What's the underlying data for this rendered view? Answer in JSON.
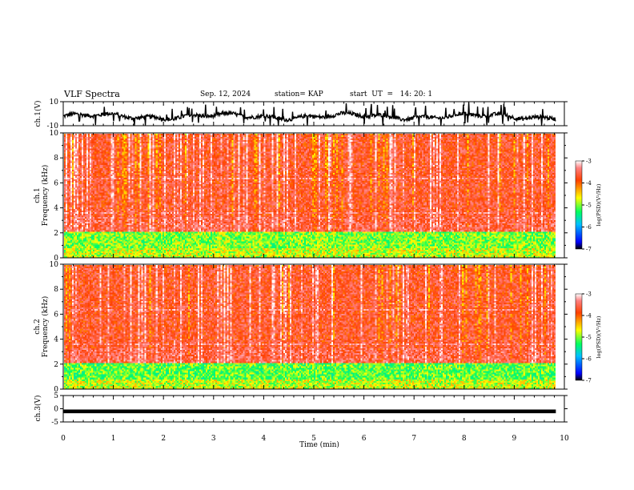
{
  "header": {
    "title": "VLF Spectra",
    "date": "Sep. 12, 2024",
    "station": "station= KAP",
    "start": "start  UT  =   14: 20: 1"
  },
  "chart_data": [
    {
      "type": "line",
      "ylabel": "ch.1(V)",
      "ylim": [
        -10,
        10
      ],
      "yticks": [
        "10",
        "-10"
      ],
      "note": "raw waveform trace, approximately -2 V baseline with spikes"
    },
    {
      "type": "heatmap",
      "ylabel_top": "ch.1",
      "ylabel": "Frequency (kHz)",
      "ylim": [
        0,
        10
      ],
      "yticks": [
        "10",
        "8",
        "6",
        "4",
        "2",
        "0"
      ],
      "xlim": [
        0,
        10
      ],
      "colorbar": {
        "label": "log(PSD)(V²/Hz)",
        "ticks": [
          "-3",
          "-4",
          "-5",
          "-6",
          "-7"
        ],
        "range": [
          -7,
          -3
        ]
      },
      "bands": [
        {
          "from_khz": 0,
          "to_khz": 0.8,
          "log_psd": -5.0
        },
        {
          "from_khz": 0.8,
          "to_khz": 2.2,
          "log_psd": -5.2
        },
        {
          "from_khz": 2.2,
          "to_khz": 10,
          "log_psd": -3.9
        }
      ]
    },
    {
      "type": "heatmap",
      "ylabel_top": "ch.2",
      "ylabel": "Frequency (kHz)",
      "ylim": [
        0,
        10
      ],
      "yticks": [
        "10",
        "8",
        "6",
        "4",
        "2",
        "0"
      ],
      "xlim": [
        0,
        10
      ],
      "colorbar": {
        "label": "log(PSD)(V²/Hz)",
        "ticks": [
          "-3",
          "-4",
          "-5",
          "-6",
          "-7"
        ],
        "range": [
          -7,
          -3
        ]
      },
      "bands": [
        {
          "from_khz": 0,
          "to_khz": 0.8,
          "log_psd": -5.0
        },
        {
          "from_khz": 0.8,
          "to_khz": 2.2,
          "log_psd": -5.3
        },
        {
          "from_khz": 2.2,
          "to_khz": 10,
          "log_psd": -3.9
        }
      ]
    },
    {
      "type": "line",
      "ylabel": "ch.3(V)",
      "ylim": [
        -5,
        5
      ],
      "yticks": [
        "5",
        "0",
        "-5"
      ],
      "note": "flat trace near -1 V"
    }
  ],
  "xaxis": {
    "label": "Time (min)",
    "ticks": [
      "0",
      "1",
      "2",
      "3",
      "4",
      "5",
      "6",
      "7",
      "8",
      "9",
      "10"
    ],
    "xlim": [
      0,
      10
    ],
    "data_end_min": 9.83
  }
}
